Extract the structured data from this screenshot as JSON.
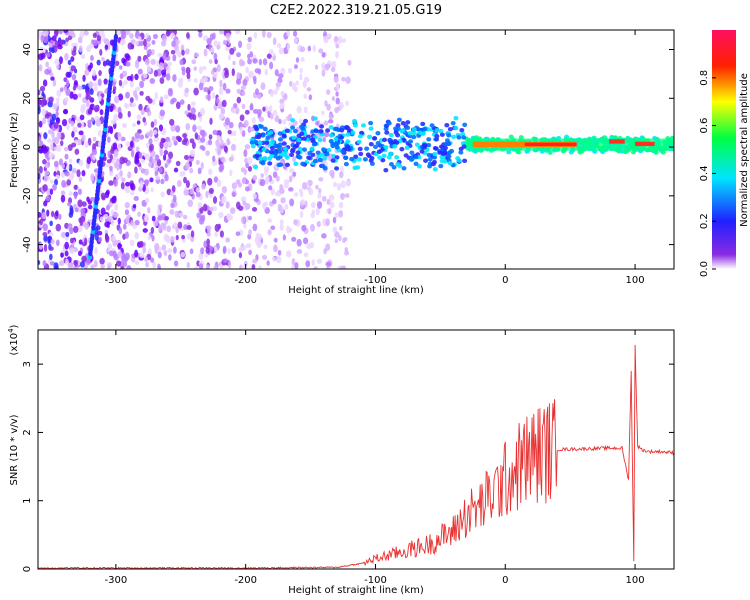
{
  "title": "C2E2.2022.319.21.05.G19",
  "colors": {
    "snr_line": "#e83030",
    "frame": "#000000"
  },
  "chart_data": [
    {
      "type": "heatmap",
      "xlabel": "Height of straight line (km)",
      "ylabel": "Frequency (Hz)",
      "xlim": [
        -360,
        130
      ],
      "ylim": [
        -50,
        48
      ],
      "x_ticks": [
        -300,
        -200,
        -100,
        0,
        100
      ],
      "x_tick_labels": [
        "-300",
        "-200",
        "-100",
        "0",
        "100"
      ],
      "y_ticks": [
        40,
        20,
        0,
        -20,
        -40
      ],
      "y_tick_labels": [
        "40",
        "20",
        "0",
        "-20",
        "-40"
      ],
      "colorbar": {
        "label": "Normalized spectral amplitude",
        "range": [
          0,
          1
        ],
        "ticks": [
          0.0,
          0.2,
          0.4,
          0.6,
          0.8
        ],
        "tick_labels": [
          "0.0",
          "0.2",
          "0.4",
          "0.6",
          "0.8"
        ],
        "colormap": "rainbow (violet to red)"
      },
      "features": [
        {
          "name": "diagonal streak",
          "x": [
            -320,
            -300
          ],
          "freq": [
            -45,
            45
          ]
        },
        {
          "name": "central band",
          "x": [
            -195,
            130
          ],
          "freq_center": 1,
          "amplitude_peak": 0.9
        }
      ]
    },
    {
      "type": "line",
      "xlabel": "Height of straight line (km)",
      "ylabel": "SNR (10 * v/v)",
      "y_multiplier_label": "(x10",
      "y_multiplier_exp": "4",
      "y_multiplier_close": ")",
      "xlim": [
        -360,
        130
      ],
      "ylim": [
        0,
        3.5
      ],
      "x_ticks": [
        -300,
        -200,
        -100,
        0,
        100
      ],
      "x_tick_labels": [
        "-300",
        "-200",
        "-100",
        "0",
        "100"
      ],
      "y_ticks": [
        0,
        1,
        2,
        3
      ],
      "y_tick_labels": [
        "0",
        "1",
        "2",
        "3"
      ],
      "series": [
        {
          "color": "#e83030",
          "x": [
            -360,
            -300,
            -200,
            -130,
            -110,
            -100,
            -80,
            -60,
            -40,
            -30,
            -20,
            -10,
            0,
            10,
            20,
            30,
            40,
            60,
            80,
            90,
            95,
            97,
            99,
            100,
            102,
            105,
            110,
            120,
            130
          ],
          "y": [
            0.01,
            0.01,
            0.01,
            0.02,
            0.08,
            0.15,
            0.25,
            0.35,
            0.55,
            0.8,
            0.9,
            1.1,
            1.3,
            1.5,
            1.65,
            1.72,
            1.75,
            1.76,
            1.77,
            1.77,
            1.3,
            2.9,
            0.1,
            3.3,
            1.8,
            1.75,
            1.72,
            1.72,
            1.7
          ]
        }
      ]
    }
  ]
}
